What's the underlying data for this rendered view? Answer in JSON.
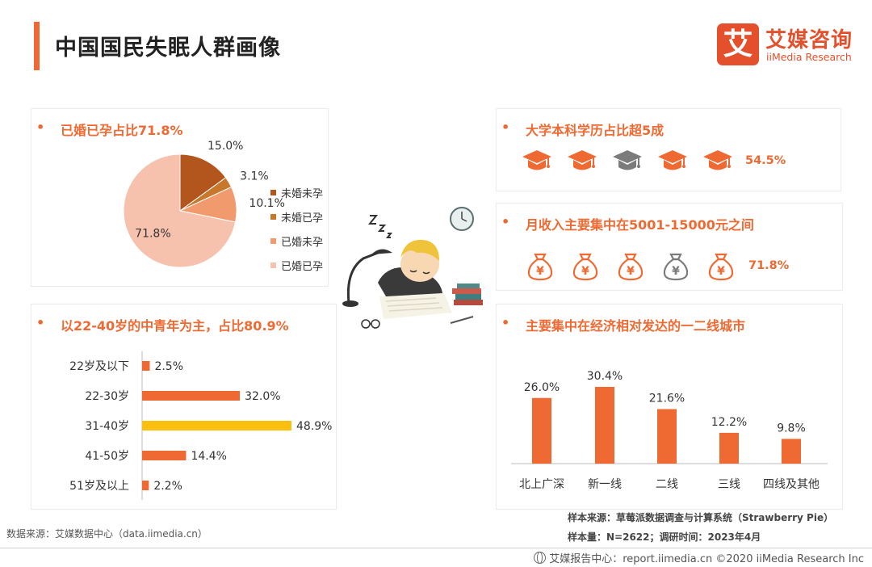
{
  "page": {
    "title": "中国国民失眠人群画像"
  },
  "logo": {
    "mark": "艾",
    "name_cn": "艾媒咨询",
    "name_en": "iiMedia Research"
  },
  "colors": {
    "accent": "#ee6a32",
    "highlight": "#fbbf0f",
    "pie": [
      "#b2561d",
      "#c8782b",
      "#f09a6e",
      "#f6c2ae"
    ],
    "icon_active": "#ee6a32",
    "icon_inactive": "#7b7b7b"
  },
  "marital": {
    "heading": "已婚已孕占比71.8%"
  },
  "age": {
    "heading": "以22-40岁的中青年为主，占比80.9%"
  },
  "education": {
    "heading": "大学本科学历占比超5成",
    "icon": "graduation-cap-icon",
    "icons": [
      {
        "active": true
      },
      {
        "active": true
      },
      {
        "active": false
      },
      {
        "active": true
      },
      {
        "active": true
      }
    ],
    "value": "54.5%"
  },
  "income": {
    "heading": "月收入主要集中在5001-15000元之间",
    "icon": "money-bag-icon",
    "symbol": "¥",
    "icons": [
      {
        "active": true
      },
      {
        "active": true
      },
      {
        "active": true
      },
      {
        "active": false
      },
      {
        "active": true
      }
    ],
    "value": "71.8%"
  },
  "city": {
    "heading": "主要集中在经济相对发达的一二线城市"
  },
  "chart_data": [
    {
      "type": "pie",
      "title": "已婚已孕占比71.8%",
      "categories": [
        "未婚未孕",
        "未婚已孕",
        "已婚未孕",
        "已婚已孕"
      ],
      "values": [
        15.0,
        3.1,
        10.1,
        71.8
      ],
      "labels": [
        "15.0%",
        "3.1%",
        "10.1%",
        "71.8%"
      ],
      "legend": "right"
    },
    {
      "type": "bar",
      "orientation": "horizontal",
      "title": "以22-40岁的中青年为主，占比80.9%",
      "categories": [
        "22岁及以下",
        "22-30岁",
        "31-40岁",
        "41-50岁",
        "51岁及以上"
      ],
      "values": [
        2.5,
        32.0,
        48.9,
        14.4,
        2.2
      ],
      "labels": [
        "2.5%",
        "32.0%",
        "48.9%",
        "14.4%",
        "2.2%"
      ],
      "highlight_index": 2,
      "grid": false
    },
    {
      "type": "bar",
      "orientation": "vertical",
      "title": "主要集中在经济相对发达的一二线城市",
      "categories": [
        "北上广深",
        "新一线",
        "二线",
        "三线",
        "四线及其他"
      ],
      "values": [
        26.0,
        30.4,
        21.6,
        12.2,
        9.8
      ],
      "labels": [
        "26.0%",
        "30.4%",
        "21.6%",
        "12.2%",
        "9.8%"
      ],
      "grid": false
    }
  ],
  "footer": {
    "source_left": "数据来源：艾媒数据中心（data.iimedia.cn）",
    "sample_source": "样本来源：草莓派数据调查与计算系统（Strawberry Pie）",
    "sample_size": "样本量：N=2622；调研时间：2023年4月",
    "report": "艾媒报告中心：report.iimedia.cn   ©2020  iiMedia Research  Inc"
  }
}
